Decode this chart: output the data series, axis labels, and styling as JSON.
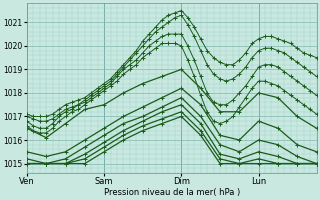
{
  "xlabel": "Pression niveau de la mer( hPa )",
  "bg_color": "#c8e8e0",
  "grid_color_minor": "#a0d0c8",
  "grid_color_major": "#80b8b0",
  "line_color": "#1a5c1a",
  "ylim": [
    1014.6,
    1021.8
  ],
  "yticks": [
    1015,
    1016,
    1017,
    1018,
    1019,
    1020,
    1021
  ],
  "xlim": [
    0,
    360
  ],
  "day_positions": [
    0,
    96,
    192,
    288
  ],
  "day_labels": [
    "Ven",
    "Sam",
    "Dim",
    "Lun"
  ],
  "series": [
    {
      "x": [
        0,
        8,
        16,
        24,
        32,
        40,
        48,
        56,
        64,
        72,
        80,
        88,
        96,
        104,
        112,
        120,
        128,
        136,
        144,
        152,
        160,
        168,
        176,
        184,
        192,
        200,
        208,
        216,
        224,
        232,
        240,
        248,
        256,
        264,
        272,
        280,
        288,
        296,
        304,
        312,
        320,
        328,
        336,
        344,
        352,
        360
      ],
      "y": [
        1017.1,
        1017.0,
        1017.0,
        1017.0,
        1017.1,
        1017.3,
        1017.5,
        1017.6,
        1017.7,
        1017.8,
        1018.0,
        1018.2,
        1018.4,
        1018.6,
        1018.9,
        1019.2,
        1019.5,
        1019.8,
        1020.2,
        1020.5,
        1020.8,
        1021.1,
        1021.3,
        1021.4,
        1021.5,
        1021.2,
        1020.8,
        1020.3,
        1019.8,
        1019.5,
        1019.3,
        1019.2,
        1019.2,
        1019.4,
        1019.7,
        1020.1,
        1020.3,
        1020.4,
        1020.4,
        1020.3,
        1020.2,
        1020.1,
        1019.9,
        1019.7,
        1019.6,
        1019.5
      ]
    },
    {
      "x": [
        0,
        8,
        16,
        24,
        32,
        40,
        48,
        56,
        64,
        72,
        80,
        88,
        96,
        104,
        112,
        120,
        128,
        136,
        144,
        152,
        160,
        168,
        176,
        184,
        192,
        200,
        208,
        216,
        224,
        232,
        240,
        248,
        256,
        264,
        272,
        280,
        288,
        296,
        304,
        312,
        320,
        328,
        336,
        344,
        352,
        360
      ],
      "y": [
        1017.0,
        1016.9,
        1016.8,
        1016.8,
        1016.9,
        1017.1,
        1017.3,
        1017.4,
        1017.5,
        1017.7,
        1017.9,
        1018.1,
        1018.3,
        1018.5,
        1018.8,
        1019.1,
        1019.4,
        1019.7,
        1020.0,
        1020.3,
        1020.6,
        1020.8,
        1021.0,
        1021.2,
        1021.3,
        1020.9,
        1020.4,
        1019.8,
        1019.2,
        1018.8,
        1018.6,
        1018.5,
        1018.6,
        1018.8,
        1019.1,
        1019.5,
        1019.8,
        1019.9,
        1019.9,
        1019.8,
        1019.7,
        1019.5,
        1019.3,
        1019.1,
        1018.9,
        1018.7
      ]
    },
    {
      "x": [
        0,
        8,
        16,
        24,
        32,
        40,
        48,
        56,
        64,
        72,
        80,
        88,
        96,
        104,
        112,
        120,
        128,
        136,
        144,
        152,
        160,
        168,
        176,
        184,
        192,
        200,
        208,
        216,
        224,
        232,
        240,
        248,
        256,
        264,
        272,
        280,
        288,
        296,
        304,
        312,
        320,
        328,
        336,
        344,
        352,
        360
      ],
      "y": [
        1016.8,
        1016.6,
        1016.5,
        1016.5,
        1016.7,
        1017.0,
        1017.2,
        1017.3,
        1017.5,
        1017.6,
        1017.8,
        1018.0,
        1018.2,
        1018.4,
        1018.7,
        1019.0,
        1019.2,
        1019.4,
        1019.7,
        1020.0,
        1020.2,
        1020.4,
        1020.5,
        1020.5,
        1020.5,
        1020.0,
        1019.4,
        1018.7,
        1018.0,
        1017.6,
        1017.5,
        1017.5,
        1017.7,
        1018.0,
        1018.3,
        1018.7,
        1019.1,
        1019.2,
        1019.2,
        1019.1,
        1018.9,
        1018.7,
        1018.5,
        1018.3,
        1018.1,
        1017.9
      ]
    },
    {
      "x": [
        0,
        8,
        16,
        24,
        32,
        40,
        48,
        56,
        64,
        72,
        80,
        88,
        96,
        104,
        112,
        120,
        128,
        136,
        144,
        152,
        160,
        168,
        176,
        184,
        192,
        200,
        208,
        216,
        224,
        232,
        240,
        248,
        256,
        264,
        272,
        280,
        288,
        296,
        304,
        312,
        320,
        328,
        336,
        344,
        352,
        360
      ],
      "y": [
        1016.6,
        1016.4,
        1016.3,
        1016.3,
        1016.5,
        1016.8,
        1017.0,
        1017.2,
        1017.3,
        1017.5,
        1017.7,
        1017.9,
        1018.1,
        1018.3,
        1018.5,
        1018.8,
        1019.0,
        1019.2,
        1019.5,
        1019.7,
        1019.9,
        1020.1,
        1020.1,
        1020.1,
        1020.0,
        1019.4,
        1018.7,
        1017.9,
        1017.2,
        1016.8,
        1016.7,
        1016.8,
        1017.0,
        1017.4,
        1017.8,
        1018.2,
        1018.5,
        1018.5,
        1018.4,
        1018.3,
        1018.1,
        1017.9,
        1017.7,
        1017.5,
        1017.3,
        1017.1
      ]
    },
    {
      "x": [
        0,
        24,
        48,
        72,
        96,
        120,
        144,
        168,
        192,
        216,
        240,
        264,
        288,
        312,
        336,
        360
      ],
      "y": [
        1016.5,
        1016.1,
        1016.7,
        1017.3,
        1017.5,
        1018.0,
        1018.4,
        1018.7,
        1019.0,
        1018.2,
        1017.2,
        1017.2,
        1018.0,
        1017.8,
        1017.0,
        1016.5
      ]
    },
    {
      "x": [
        0,
        24,
        48,
        72,
        96,
        120,
        144,
        168,
        192,
        216,
        240,
        264,
        288,
        312,
        336,
        360
      ],
      "y": [
        1015.5,
        1015.3,
        1015.5,
        1016.0,
        1016.5,
        1017.0,
        1017.4,
        1017.8,
        1018.2,
        1017.5,
        1016.2,
        1016.0,
        1016.8,
        1016.5,
        1015.8,
        1015.5
      ]
    },
    {
      "x": [
        0,
        24,
        48,
        72,
        96,
        120,
        144,
        168,
        192,
        216,
        240,
        264,
        288,
        312,
        336,
        360
      ],
      "y": [
        1015.2,
        1015.0,
        1015.2,
        1015.7,
        1016.2,
        1016.7,
        1017.0,
        1017.4,
        1017.8,
        1017.0,
        1015.8,
        1015.5,
        1016.0,
        1015.8,
        1015.3,
        1015.0
      ]
    },
    {
      "x": [
        0,
        24,
        48,
        72,
        96,
        120,
        144,
        168,
        192,
        216,
        240,
        264,
        288,
        312,
        336,
        360
      ],
      "y": [
        1015.0,
        1015.0,
        1015.0,
        1015.4,
        1015.9,
        1016.4,
        1016.8,
        1017.2,
        1017.5,
        1016.7,
        1015.4,
        1015.2,
        1015.5,
        1015.3,
        1015.0,
        1015.0
      ]
    },
    {
      "x": [
        0,
        24,
        48,
        72,
        96,
        120,
        144,
        168,
        192,
        216,
        240,
        264,
        288,
        312,
        336,
        360
      ],
      "y": [
        1015.0,
        1015.0,
        1015.0,
        1015.2,
        1015.7,
        1016.2,
        1016.6,
        1016.9,
        1017.2,
        1016.4,
        1015.2,
        1015.0,
        1015.2,
        1015.0,
        1015.0,
        1015.0
      ]
    },
    {
      "x": [
        0,
        24,
        48,
        72,
        96,
        120,
        144,
        168,
        192,
        216,
        240,
        264,
        288,
        312,
        336,
        360
      ],
      "y": [
        1015.0,
        1015.0,
        1015.0,
        1015.0,
        1015.5,
        1016.0,
        1016.4,
        1016.7,
        1017.0,
        1016.2,
        1015.0,
        1015.0,
        1015.0,
        1015.0,
        1015.0,
        1015.0
      ]
    }
  ],
  "lw_dense": 0.7,
  "lw_sparse": 0.9,
  "ms": 2.5
}
